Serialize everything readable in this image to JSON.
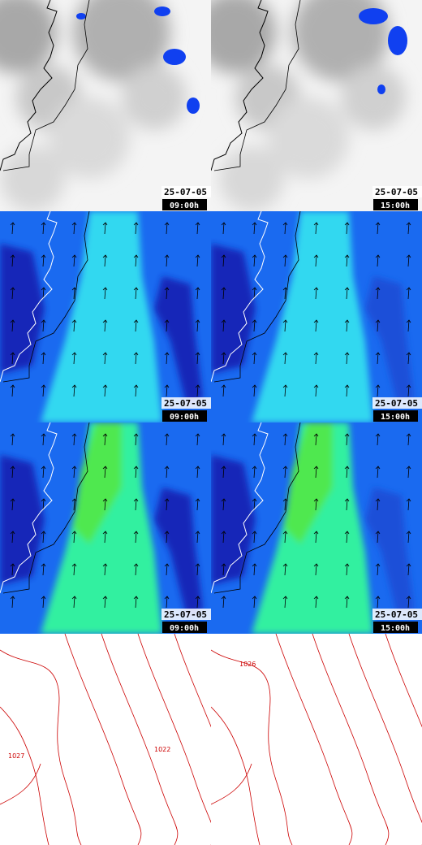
{
  "panels": [
    {
      "date": "25-07-05",
      "time": "09:00h"
    },
    {
      "date": "25-07-05",
      "time": "15:00h"
    },
    {
      "date": "25-07-05",
      "time": "09:00h"
    },
    {
      "date": "25-07-05",
      "time": "15:00h"
    },
    {
      "date": "25-07-05",
      "time": "09:00h"
    },
    {
      "date": "25-07-05",
      "time": "15:00h"
    }
  ],
  "contour_labels": {
    "left": [
      "1022",
      "1027"
    ],
    "right": [
      "1026"
    ]
  }
}
